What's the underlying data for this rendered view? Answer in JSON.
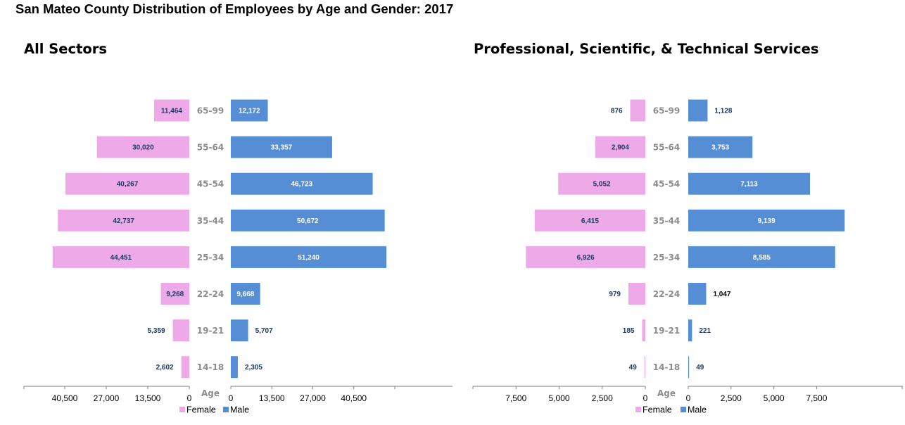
{
  "title": "San Mateo County Distribution of Employees by Age and Gender: 2017",
  "colors": {
    "female": "#eeaae8",
    "male": "#558ed5",
    "label_dark": "#1f3864",
    "label_light": "#ffffff",
    "age_label": "#8c8c8c",
    "axis": "#808080"
  },
  "legend": {
    "female": "Female",
    "male": "Male"
  },
  "age_axis_label": "Age",
  "chart_data": [
    {
      "type": "bar",
      "subtype": "population-pyramid",
      "title": "All Sectors",
      "categories": [
        "65-99",
        "55-64",
        "45-54",
        "35-44",
        "25-34",
        "22-24",
        "19-21",
        "14-18"
      ],
      "series": [
        {
          "name": "Female",
          "values": [
            11464,
            30020,
            40267,
            42737,
            44451,
            9268,
            5359,
            2602
          ],
          "labels": [
            "11,464",
            "30,020",
            "40,267",
            "42,737",
            "44,451",
            "9,268",
            "5,359",
            "2,602"
          ]
        },
        {
          "name": "Male",
          "values": [
            12172,
            33357,
            46723,
            50672,
            51240,
            9668,
            5707,
            2305
          ],
          "labels": [
            "12,172",
            "33,357",
            "46,723",
            "50,672",
            "51,240",
            "9,668",
            "5,707",
            "2,305"
          ]
        }
      ],
      "female_axis": {
        "max": 54000,
        "ticks": [
          40500,
          27000,
          13500,
          0
        ],
        "tick_labels": [
          "40,500",
          "27,000",
          "13,500",
          "0"
        ]
      },
      "male_axis": {
        "max": 54000,
        "ticks": [
          0,
          13500,
          27000,
          40500
        ],
        "tick_labels": [
          "0",
          "13,500",
          "27,000",
          "40,500"
        ]
      },
      "ylabel": "Age",
      "legend_position": "bottom"
    },
    {
      "type": "bar",
      "subtype": "population-pyramid",
      "title": "Professional, Scientific, & Technical Services",
      "categories": [
        "65-99",
        "55-64",
        "45-54",
        "35-44",
        "25-34",
        "22-24",
        "19-21",
        "14-18"
      ],
      "series": [
        {
          "name": "Female",
          "values": [
            876,
            2904,
            5052,
            6415,
            6926,
            979,
            185,
            49
          ],
          "labels": [
            "876",
            "2,904",
            "5,052",
            "6,415",
            "6,926",
            "979",
            "185",
            "49"
          ]
        },
        {
          "name": "Male",
          "values": [
            1128,
            3753,
            7113,
            9139,
            8585,
            1047,
            221,
            49
          ],
          "labels": [
            "1,128",
            "3,753",
            "7,113",
            "9,139",
            "8,585",
            "1,047",
            "221",
            "49"
          ]
        }
      ],
      "female_axis": {
        "max": 10000,
        "ticks": [
          7500,
          5000,
          2500,
          0
        ],
        "tick_labels": [
          "7,500",
          "5,000",
          "2,500",
          "0"
        ]
      },
      "male_axis": {
        "max": 12500,
        "ticks": [
          0,
          2500,
          5000,
          7500
        ],
        "tick_labels": [
          "0",
          "2,500",
          "5,000",
          "7,500"
        ]
      },
      "ylabel": "Age",
      "legend_position": "bottom"
    }
  ]
}
